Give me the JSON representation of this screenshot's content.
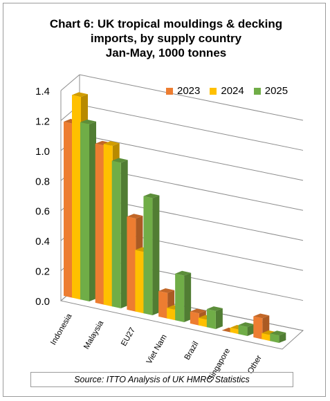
{
  "chart_data": {
    "type": "bar",
    "title_lines": [
      "Chart 6: UK tropical mouldings & decking",
      "imports, by supply country",
      "Jan-May, 1000 tonnes"
    ],
    "categories": [
      "Indonesia",
      "Malaysia",
      "EU27",
      "Viet Nam",
      "Brazil",
      "Singapore",
      "Other"
    ],
    "series": [
      {
        "name": "2023",
        "values": [
          1.16,
          1.06,
          0.62,
          0.17,
          0.08,
          0.0,
          0.14
        ],
        "color": "#ED7D31"
      },
      {
        "name": "2024",
        "values": [
          1.35,
          1.07,
          0.41,
          0.07,
          0.05,
          0.03,
          0.04
        ],
        "color": "#FFC000"
      },
      {
        "name": "2025",
        "values": [
          1.18,
          0.97,
          0.78,
          0.31,
          0.12,
          0.06,
          0.05
        ],
        "color": "#70AD47"
      }
    ],
    "y_ticks": [
      "0.0",
      "0.2",
      "0.4",
      "0.6",
      "0.8",
      "1.0",
      "1.2",
      "1.4"
    ],
    "ylim": [
      0,
      1.4
    ],
    "grid": true,
    "legend_position": "top-right",
    "source": "Source: ITTO Analysis of UK HMRC Statistics"
  }
}
